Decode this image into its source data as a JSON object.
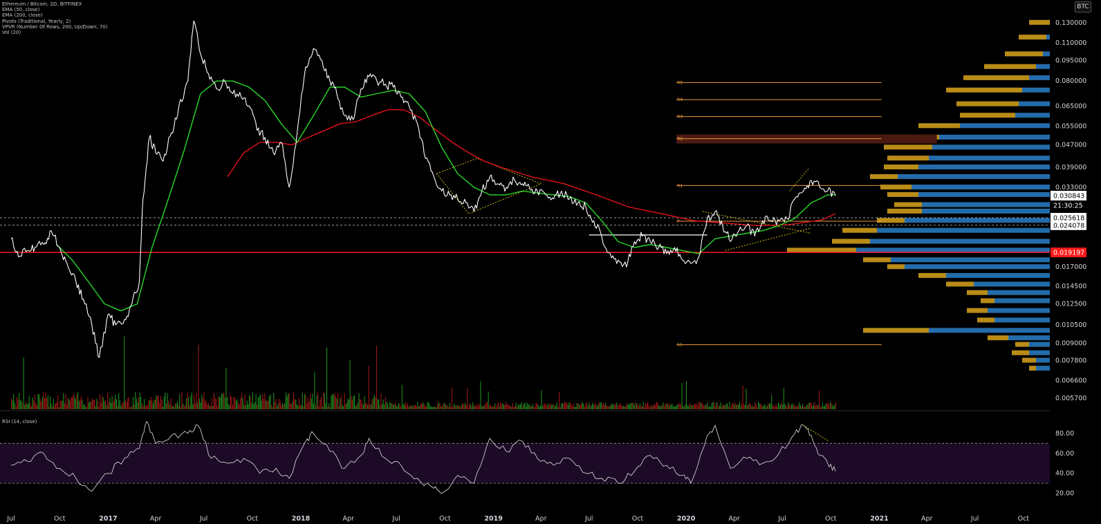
{
  "legend": [
    "Ethereum / Bitcoin, 2D, BITFINEX",
    "EMA (50, close)",
    "EMA (200, close)",
    "Pivots (Traditional, Yearly, 2)",
    "VPVR (Number Of Rows, 200, Up/Down, 70)",
    "Vol (20)"
  ],
  "rsi_label": "RSI (14, close)",
  "currency_badge": "BTC",
  "price_labels": [
    "0.130000",
    "0.110000",
    "0.095000",
    "0.080000",
    "0.065000",
    "0.055000",
    "0.047000",
    "0.039000",
    "0.033000",
    "0.017000",
    "0.014500",
    "0.012500",
    "0.010500",
    "0.009000",
    "0.007800",
    "0.006600",
    "0.005700"
  ],
  "rsi_ticks": [
    "80.00",
    "60.00",
    "40.00",
    "20.00"
  ],
  "time_labels": [
    "Jul",
    "Oct",
    "2017",
    "Apr",
    "Jul",
    "Oct",
    "2018",
    "Apr",
    "Jul",
    "Oct",
    "2019",
    "Apr",
    "Jul",
    "Oct",
    "2020",
    "Apr",
    "Jul",
    "Oct",
    "2021",
    "Apr",
    "Jul",
    "Oct"
  ],
  "price_tags": {
    "last": "0.030843",
    "countdown": "21:30:25",
    "level_upper": "0.025618",
    "level_lower": "0.024078",
    "support": "0.019197"
  },
  "pivot_labels": [
    "R5",
    "R4",
    "R3",
    "R2",
    "R1",
    "P",
    "S1"
  ],
  "colors": {
    "background": "#000000",
    "price_line": "#ffffff",
    "ema50": "#2bd92b",
    "ema200": "#e3131a",
    "pivot": "#f09a3c",
    "vp_up": "#d9a41c",
    "vp_down": "#2a7fc9",
    "rsi_band": "#1c0a26",
    "support": "#ff1a1a",
    "vol_up": "#1e8c1e",
    "vol_down": "#a01818"
  },
  "chart_data": {
    "type": "line",
    "title": "Ethereum / Bitcoin, 2D, BITFINEX",
    "y_scale": "log",
    "ylim": [
      0.0052,
      0.15
    ],
    "x_range": [
      "2016-06-10",
      "2021-11-20"
    ],
    "series": [
      {
        "name": "Ethereum / Bitcoin",
        "points": [
          [
            "2016-07-01",
            0.0215
          ],
          [
            "2016-07-15",
            0.0185
          ],
          [
            "2016-08-01",
            0.0195
          ],
          [
            "2016-08-15",
            0.02
          ],
          [
            "2016-09-01",
            0.0205
          ],
          [
            "2016-09-15",
            0.023
          ],
          [
            "2016-10-01",
            0.02
          ],
          [
            "2016-10-15",
            0.0175
          ],
          [
            "2016-11-01",
            0.015
          ],
          [
            "2016-11-15",
            0.013
          ],
          [
            "2016-12-01",
            0.0105
          ],
          [
            "2016-12-15",
            0.008
          ],
          [
            "2017-01-01",
            0.0115
          ],
          [
            "2017-01-15",
            0.0105
          ],
          [
            "2017-02-01",
            0.011
          ],
          [
            "2017-02-15",
            0.0125
          ],
          [
            "2017-03-01",
            0.015
          ],
          [
            "2017-03-08",
            0.03
          ],
          [
            "2017-03-20",
            0.05
          ],
          [
            "2017-04-01",
            0.044
          ],
          [
            "2017-04-15",
            0.041
          ],
          [
            "2017-05-01",
            0.052
          ],
          [
            "2017-05-15",
            0.065
          ],
          [
            "2017-06-01",
            0.08
          ],
          [
            "2017-06-12",
            0.132
          ],
          [
            "2017-06-25",
            0.1
          ],
          [
            "2017-07-10",
            0.085
          ],
          [
            "2017-07-25",
            0.075
          ],
          [
            "2017-08-10",
            0.08
          ],
          [
            "2017-08-25",
            0.072
          ],
          [
            "2017-09-10",
            0.07
          ],
          [
            "2017-09-25",
            0.065
          ],
          [
            "2017-10-10",
            0.053
          ],
          [
            "2017-10-25",
            0.05
          ],
          [
            "2017-11-10",
            0.044
          ],
          [
            "2017-11-25",
            0.048
          ],
          [
            "2017-12-10",
            0.033
          ],
          [
            "2017-12-25",
            0.052
          ],
          [
            "2018-01-10",
            0.09
          ],
          [
            "2018-01-25",
            0.105
          ],
          [
            "2018-02-10",
            0.095
          ],
          [
            "2018-02-25",
            0.08
          ],
          [
            "2018-03-10",
            0.072
          ],
          [
            "2018-03-25",
            0.06
          ],
          [
            "2018-04-10",
            0.058
          ],
          [
            "2018-04-25",
            0.075
          ],
          [
            "2018-05-10",
            0.083
          ],
          [
            "2018-05-25",
            0.08
          ],
          [
            "2018-06-10",
            0.078
          ],
          [
            "2018-06-25",
            0.076
          ],
          [
            "2018-07-10",
            0.07
          ],
          [
            "2018-07-25",
            0.065
          ],
          [
            "2018-08-10",
            0.056
          ],
          [
            "2018-08-25",
            0.042
          ],
          [
            "2018-09-10",
            0.036
          ],
          [
            "2018-09-25",
            0.032
          ],
          [
            "2018-10-10",
            0.031
          ],
          [
            "2018-10-25",
            0.03
          ],
          [
            "2018-11-10",
            0.029
          ],
          [
            "2018-11-25",
            0.027
          ],
          [
            "2018-12-10",
            0.032
          ],
          [
            "2018-12-25",
            0.036
          ],
          [
            "2019-01-10",
            0.034
          ],
          [
            "2019-01-25",
            0.033
          ],
          [
            "2019-02-10",
            0.035
          ],
          [
            "2019-02-25",
            0.034
          ],
          [
            "2019-03-10",
            0.033
          ],
          [
            "2019-03-25",
            0.032
          ],
          [
            "2019-04-10",
            0.031
          ],
          [
            "2019-04-25",
            0.03
          ],
          [
            "2019-05-10",
            0.032
          ],
          [
            "2019-05-25",
            0.03
          ],
          [
            "2019-06-10",
            0.029
          ],
          [
            "2019-06-25",
            0.028
          ],
          [
            "2019-07-10",
            0.025
          ],
          [
            "2019-07-25",
            0.022
          ],
          [
            "2019-08-10",
            0.019
          ],
          [
            "2019-08-25",
            0.018
          ],
          [
            "2019-09-10",
            0.017
          ],
          [
            "2019-09-25",
            0.021
          ],
          [
            "2019-10-10",
            0.022
          ],
          [
            "2019-10-25",
            0.021
          ],
          [
            "2019-11-10",
            0.02
          ],
          [
            "2019-11-25",
            0.019
          ],
          [
            "2019-12-10",
            0.02
          ],
          [
            "2019-12-25",
            0.018
          ],
          [
            "2020-01-10",
            0.0175
          ],
          [
            "2020-01-25",
            0.0185
          ],
          [
            "2020-02-10",
            0.0255
          ],
          [
            "2020-02-25",
            0.027
          ],
          [
            "2020-03-10",
            0.024
          ],
          [
            "2020-03-25",
            0.021
          ],
          [
            "2020-04-10",
            0.023
          ],
          [
            "2020-04-25",
            0.024
          ],
          [
            "2020-05-10",
            0.022
          ],
          [
            "2020-05-25",
            0.025
          ],
          [
            "2020-06-10",
            0.025
          ],
          [
            "2020-06-25",
            0.025
          ],
          [
            "2020-07-10",
            0.0255
          ],
          [
            "2020-07-25",
            0.03
          ],
          [
            "2020-08-10",
            0.032
          ],
          [
            "2020-08-25",
            0.035
          ],
          [
            "2020-09-10",
            0.033
          ],
          [
            "2020-09-25",
            0.032
          ],
          [
            "2020-10-10",
            0.0308
          ]
        ]
      },
      {
        "name": "EMA (50, close)",
        "points": [
          [
            "2016-09-25",
            0.0205
          ],
          [
            "2016-10-25",
            0.018
          ],
          [
            "2016-11-25",
            0.015
          ],
          [
            "2016-12-25",
            0.0125
          ],
          [
            "2017-01-25",
            0.0118
          ],
          [
            "2017-02-25",
            0.0125
          ],
          [
            "2017-03-25",
            0.02
          ],
          [
            "2017-04-25",
            0.03
          ],
          [
            "2017-05-25",
            0.045
          ],
          [
            "2017-06-25",
            0.072
          ],
          [
            "2017-07-25",
            0.08
          ],
          [
            "2017-08-25",
            0.08
          ],
          [
            "2017-09-25",
            0.076
          ],
          [
            "2017-10-25",
            0.068
          ],
          [
            "2017-11-25",
            0.056
          ],
          [
            "2017-12-25",
            0.048
          ],
          [
            "2018-01-25",
            0.06
          ],
          [
            "2018-02-25",
            0.076
          ],
          [
            "2018-03-25",
            0.076
          ],
          [
            "2018-04-25",
            0.07
          ],
          [
            "2018-05-25",
            0.072
          ],
          [
            "2018-06-25",
            0.074
          ],
          [
            "2018-07-25",
            0.072
          ],
          [
            "2018-08-25",
            0.062
          ],
          [
            "2018-09-25",
            0.046
          ],
          [
            "2018-10-25",
            0.037
          ],
          [
            "2018-11-25",
            0.033
          ],
          [
            "2018-12-25",
            0.031
          ],
          [
            "2019-01-25",
            0.031
          ],
          [
            "2019-02-25",
            0.032
          ],
          [
            "2019-03-25",
            0.0315
          ],
          [
            "2019-04-25",
            0.031
          ],
          [
            "2019-05-25",
            0.0305
          ],
          [
            "2019-06-25",
            0.029
          ],
          [
            "2019-07-25",
            0.025
          ],
          [
            "2019-08-25",
            0.021
          ],
          [
            "2019-09-25",
            0.02
          ],
          [
            "2019-10-25",
            0.0205
          ],
          [
            "2019-11-25",
            0.02
          ],
          [
            "2019-12-25",
            0.0195
          ],
          [
            "2020-01-25",
            0.019
          ],
          [
            "2020-02-25",
            0.0215
          ],
          [
            "2020-03-25",
            0.022
          ],
          [
            "2020-04-25",
            0.0225
          ],
          [
            "2020-05-25",
            0.023
          ],
          [
            "2020-06-25",
            0.024
          ],
          [
            "2020-07-25",
            0.0255
          ],
          [
            "2020-08-25",
            0.029
          ],
          [
            "2020-09-25",
            0.031
          ],
          [
            "2020-10-10",
            0.031
          ]
        ]
      },
      {
        "name": "EMA (200, close)",
        "points": [
          [
            "2017-08-15",
            0.036
          ],
          [
            "2017-09-15",
            0.044
          ],
          [
            "2017-10-15",
            0.048
          ],
          [
            "2017-11-15",
            0.048
          ],
          [
            "2017-12-15",
            0.047
          ],
          [
            "2018-01-15",
            0.05
          ],
          [
            "2018-02-15",
            0.053
          ],
          [
            "2018-03-15",
            0.056
          ],
          [
            "2018-04-15",
            0.057
          ],
          [
            "2018-05-15",
            0.06
          ],
          [
            "2018-06-15",
            0.063
          ],
          [
            "2018-07-15",
            0.063
          ],
          [
            "2018-08-15",
            0.059
          ],
          [
            "2018-09-15",
            0.053
          ],
          [
            "2018-10-15",
            0.048
          ],
          [
            "2018-11-15",
            0.044
          ],
          [
            "2018-12-15",
            0.041
          ],
          [
            "2019-01-15",
            0.039
          ],
          [
            "2019-03-15",
            0.036
          ],
          [
            "2019-05-15",
            0.034
          ],
          [
            "2019-07-15",
            0.031
          ],
          [
            "2019-09-15",
            0.028
          ],
          [
            "2019-11-15",
            0.0265
          ],
          [
            "2020-01-15",
            0.025
          ],
          [
            "2020-03-15",
            0.0245
          ],
          [
            "2020-05-15",
            0.024
          ],
          [
            "2020-07-15",
            0.0242
          ],
          [
            "2020-09-15",
            0.0252
          ],
          [
            "2020-10-10",
            0.0265
          ]
        ]
      }
    ],
    "pivots": [
      {
        "label": "R5",
        "value": 0.079
      },
      {
        "label": "R4",
        "value": 0.0685
      },
      {
        "label": "R3",
        "value": 0.0595
      },
      {
        "label": "R2",
        "value": 0.0495
      },
      {
        "label": "R1",
        "value": 0.0335
      },
      {
        "label": "P",
        "value": 0.0249
      },
      {
        "label": "S1",
        "value": 0.0089
      }
    ],
    "pivot_range": [
      "2020-01-01",
      "2020-12-31"
    ],
    "horizontal_levels": [
      0.025618,
      0.024078,
      0.019197
    ],
    "rsi": {
      "ylim": [
        10,
        100
      ],
      "bands": [
        30,
        70
      ],
      "points": [
        [
          "2016-07-01",
          48
        ],
        [
          "2016-08-01",
          52
        ],
        [
          "2016-09-01",
          60
        ],
        [
          "2016-10-01",
          45
        ],
        [
          "2016-11-01",
          35
        ],
        [
          "2016-12-01",
          22
        ],
        [
          "2017-01-01",
          40
        ],
        [
          "2017-02-01",
          55
        ],
        [
          "2017-03-01",
          65
        ],
        [
          "2017-03-15",
          92
        ],
        [
          "2017-04-01",
          70
        ],
        [
          "2017-05-01",
          78
        ],
        [
          "2017-06-01",
          80
        ],
        [
          "2017-06-20",
          88
        ],
        [
          "2017-07-15",
          55
        ],
        [
          "2017-08-15",
          50
        ],
        [
          "2017-09-15",
          55
        ],
        [
          "2017-10-15",
          40
        ],
        [
          "2017-11-15",
          45
        ],
        [
          "2017-12-10",
          35
        ],
        [
          "2018-01-10",
          72
        ],
        [
          "2018-01-25",
          80
        ],
        [
          "2018-02-25",
          62
        ],
        [
          "2018-03-25",
          45
        ],
        [
          "2018-04-25",
          58
        ],
        [
          "2018-05-10",
          75
        ],
        [
          "2018-06-10",
          55
        ],
        [
          "2018-07-10",
          48
        ],
        [
          "2018-08-10",
          35
        ],
        [
          "2018-09-10",
          25
        ],
        [
          "2018-09-25",
          20
        ],
        [
          "2018-10-25",
          38
        ],
        [
          "2018-11-25",
          30
        ],
        [
          "2018-12-25",
          75
        ],
        [
          "2019-01-25",
          62
        ],
        [
          "2019-02-25",
          72
        ],
        [
          "2019-03-25",
          55
        ],
        [
          "2019-04-25",
          48
        ],
        [
          "2019-05-25",
          55
        ],
        [
          "2019-06-25",
          40
        ],
        [
          "2019-07-25",
          35
        ],
        [
          "2019-08-25",
          30
        ],
        [
          "2019-09-25",
          42
        ],
        [
          "2019-10-25",
          58
        ],
        [
          "2019-11-25",
          48
        ],
        [
          "2019-12-25",
          38
        ],
        [
          "2020-01-10",
          30
        ],
        [
          "2020-02-10",
          78
        ],
        [
          "2020-02-25",
          88
        ],
        [
          "2020-03-25",
          45
        ],
        [
          "2020-04-25",
          55
        ],
        [
          "2020-05-25",
          50
        ],
        [
          "2020-06-25",
          60
        ],
        [
          "2020-07-25",
          80
        ],
        [
          "2020-08-10",
          88
        ],
        [
          "2020-08-25",
          78
        ],
        [
          "2020-09-10",
          58
        ],
        [
          "2020-09-25",
          50
        ],
        [
          "2020-10-10",
          42
        ]
      ]
    }
  }
}
